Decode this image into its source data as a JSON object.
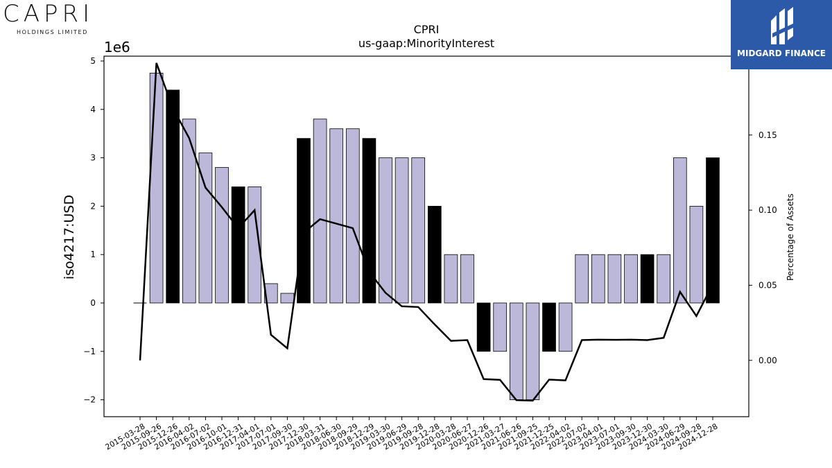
{
  "logos": {
    "capri_name": "CAPRI",
    "capri_subtitle": "HOLDINGS LIMITED",
    "midgard_name": "MIDGARD FINANCE"
  },
  "colors": {
    "bar_default": "#bcb8d9",
    "bar_highlight": "#000000",
    "line": "#000000",
    "midgard_bg": "#2d5aa8"
  },
  "chart_data": {
    "type": "bar",
    "title": "CPRI",
    "subtitle": "us-gaap:MinorityInterest",
    "ylabel": "iso4217:USD",
    "y2label": "Percentage of Assets",
    "y_offset_label": "1e6",
    "ylim": [
      -2.35,
      5.1
    ],
    "y2lim": [
      -0.0375,
      0.2025
    ],
    "yticks": [
      "−2",
      "−1",
      "0",
      "1",
      "2",
      "3",
      "4",
      "5"
    ],
    "y2ticks": [
      "0.00",
      "0.05",
      "0.10",
      "0.15"
    ],
    "categories": [
      "2015-03-28",
      "2015-09-26",
      "2015-12-26",
      "2016-04-02",
      "2016-07-02",
      "2016-10-01",
      "2016-12-31",
      "2017-04-01",
      "2017-07-01",
      "2017-09-30",
      "2017-12-30",
      "2018-03-31",
      "2018-06-30",
      "2018-09-29",
      "2018-12-29",
      "2019-03-30",
      "2019-06-29",
      "2019-09-28",
      "2019-12-28",
      "2020-03-28",
      "2020-06-27",
      "2020-12-26",
      "2021-03-27",
      "2021-06-26",
      "2021-09-25",
      "2021-12-25",
      "2022-04-02",
      "2022-07-02",
      "2023-04-01",
      "2023-07-01",
      "2023-09-30",
      "2023-12-30",
      "2024-03-30",
      "2024-06-29",
      "2024-09-28",
      "2024-12-28"
    ],
    "series": [
      {
        "kind": "bar",
        "values": [
          0,
          4.75,
          4.4,
          3.8,
          3.1,
          2.8,
          2.4,
          2.4,
          0.4,
          0.2,
          3.4,
          3.8,
          3.6,
          3.6,
          3.4,
          3.0,
          3.0,
          3.0,
          2.0,
          1.0,
          1.0,
          -1.0,
          -1.0,
          -2.0,
          -2.0,
          -1.0,
          -1.0,
          1.0,
          1.0,
          1.0,
          1.0,
          1.0,
          1.0,
          3.0,
          2.0,
          3.0
        ],
        "highlight": [
          false,
          false,
          true,
          false,
          false,
          false,
          true,
          false,
          false,
          false,
          true,
          false,
          false,
          false,
          true,
          false,
          false,
          false,
          true,
          false,
          false,
          true,
          false,
          false,
          false,
          true,
          false,
          false,
          false,
          false,
          false,
          true,
          false,
          false,
          false,
          true
        ]
      },
      {
        "kind": "line",
        "axis": "right",
        "values": [
          0.0,
          0.198,
          0.168,
          0.148,
          0.115,
          0.102,
          0.088,
          0.1,
          0.017,
          0.008,
          0.085,
          0.094,
          0.091,
          0.088,
          0.059,
          0.045,
          0.036,
          0.0355,
          0.024,
          0.013,
          0.0135,
          -0.0125,
          -0.013,
          -0.0265,
          -0.0268,
          -0.0128,
          -0.0133,
          0.0135,
          0.0138,
          0.0137,
          0.0138,
          0.0135,
          0.015,
          0.0456,
          0.0295,
          0.0505
        ]
      }
    ],
    "grid": false,
    "legend": "none"
  }
}
